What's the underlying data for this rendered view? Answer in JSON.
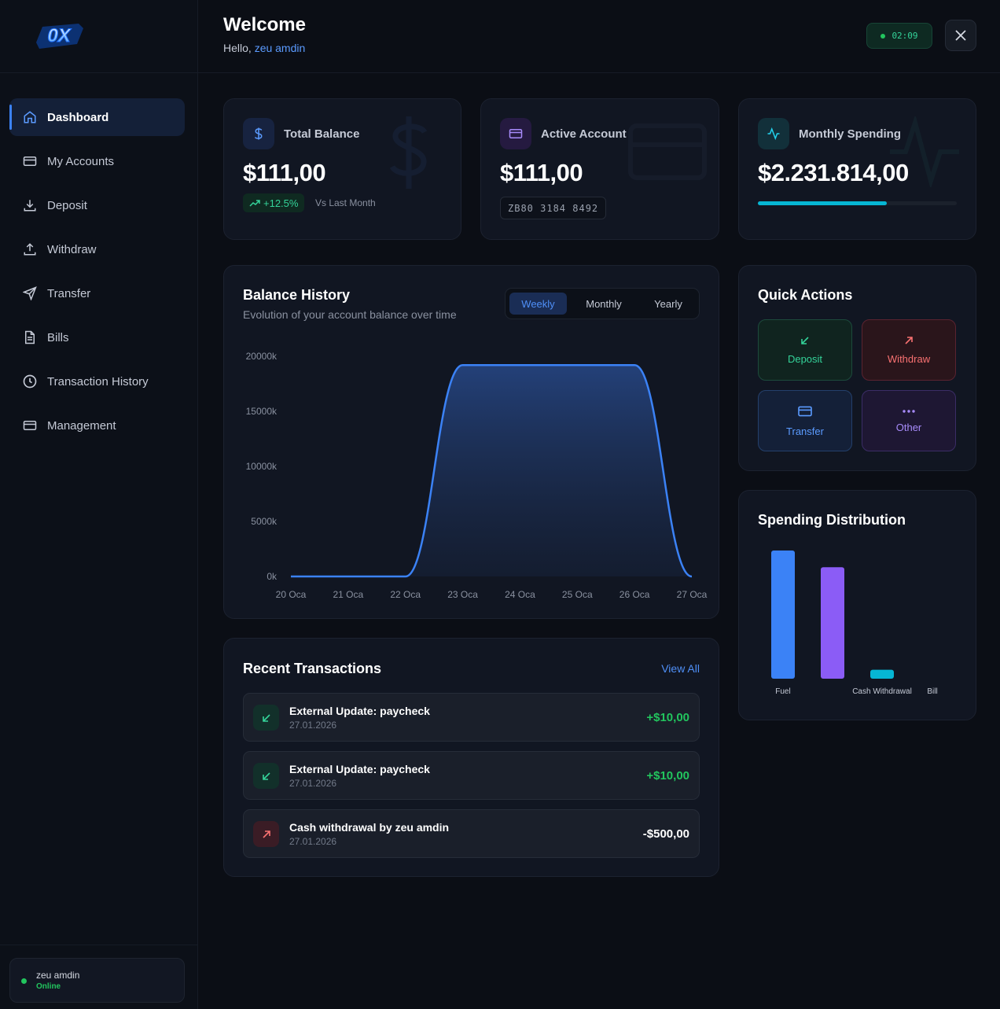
{
  "brand": {
    "logo_text": "0X"
  },
  "sidebar": {
    "items": [
      {
        "label": "Dashboard",
        "icon": "home-icon",
        "active": true
      },
      {
        "label": "My Accounts",
        "icon": "card-icon"
      },
      {
        "label": "Deposit",
        "icon": "download-icon"
      },
      {
        "label": "Withdraw",
        "icon": "upload-icon"
      },
      {
        "label": "Transfer",
        "icon": "send-icon"
      },
      {
        "label": "Bills",
        "icon": "file-icon"
      },
      {
        "label": "Transaction History",
        "icon": "clock-icon"
      },
      {
        "label": "Management",
        "icon": "card-icon"
      }
    ],
    "user": {
      "name": "zeu amdin",
      "status": "Online"
    }
  },
  "header": {
    "title": "Welcome",
    "greeting": "Hello,",
    "username": "zeu amdin",
    "timer": "02:09"
  },
  "stats": {
    "total_balance": {
      "label": "Total Balance",
      "value": "$111,00",
      "change": "+12.5%",
      "compare": "Vs Last Month"
    },
    "active_account": {
      "label": "Active Account",
      "value": "$111,00",
      "account_number": "ZB80 3184 8492"
    },
    "monthly_spending": {
      "label": "Monthly Spending",
      "value": "$2.231.814,00",
      "progress": 0.65
    }
  },
  "balance_history": {
    "title": "Balance History",
    "subtitle": "Evolution of your account balance over time",
    "tabs": [
      "Weekly",
      "Monthly",
      "Yearly"
    ],
    "active_tab": "Weekly"
  },
  "chart_data": [
    {
      "type": "area",
      "x": [
        "20 Oca",
        "21 Oca",
        "22 Oca",
        "23 Oca",
        "24 Oca",
        "25 Oca",
        "26 Oca",
        "27 Oca"
      ],
      "values": [
        0,
        0,
        0,
        19200,
        19200,
        19200,
        19200,
        0
      ],
      "yticks": [
        "0k",
        "5000k",
        "10000k",
        "15000k",
        "20000k"
      ],
      "ylim": [
        0,
        20000
      ],
      "color": "#3b82f6"
    },
    {
      "type": "bar",
      "title": "Spending Distribution",
      "categories": [
        "Fuel",
        "",
        "Cash Withdrawal",
        "Bill"
      ],
      "values": [
        100,
        87,
        7,
        0
      ],
      "colors": [
        "#3b82f6",
        "#8b5cf6",
        "#06b6d4",
        "#10b981"
      ]
    }
  ],
  "quick_actions": {
    "title": "Quick Actions",
    "items": [
      {
        "label": "Deposit"
      },
      {
        "label": "Withdraw"
      },
      {
        "label": "Transfer"
      },
      {
        "label": "Other"
      }
    ]
  },
  "transactions": {
    "title": "Recent Transactions",
    "view_all": "View All",
    "items": [
      {
        "title": "External Update: paycheck",
        "date": "27.01.2026",
        "amount": "+$10,00",
        "direction": "in"
      },
      {
        "title": "External Update: paycheck",
        "date": "27.01.2026",
        "amount": "+$10,00",
        "direction": "in"
      },
      {
        "title": "Cash withdrawal by zeu amdin",
        "date": "27.01.2026",
        "amount": "-$500,00",
        "direction": "out"
      }
    ]
  },
  "colors": {
    "accent": "#3b82f6",
    "positive": "#22c55e",
    "negative": "#f87171",
    "background": "#0b0e15"
  }
}
